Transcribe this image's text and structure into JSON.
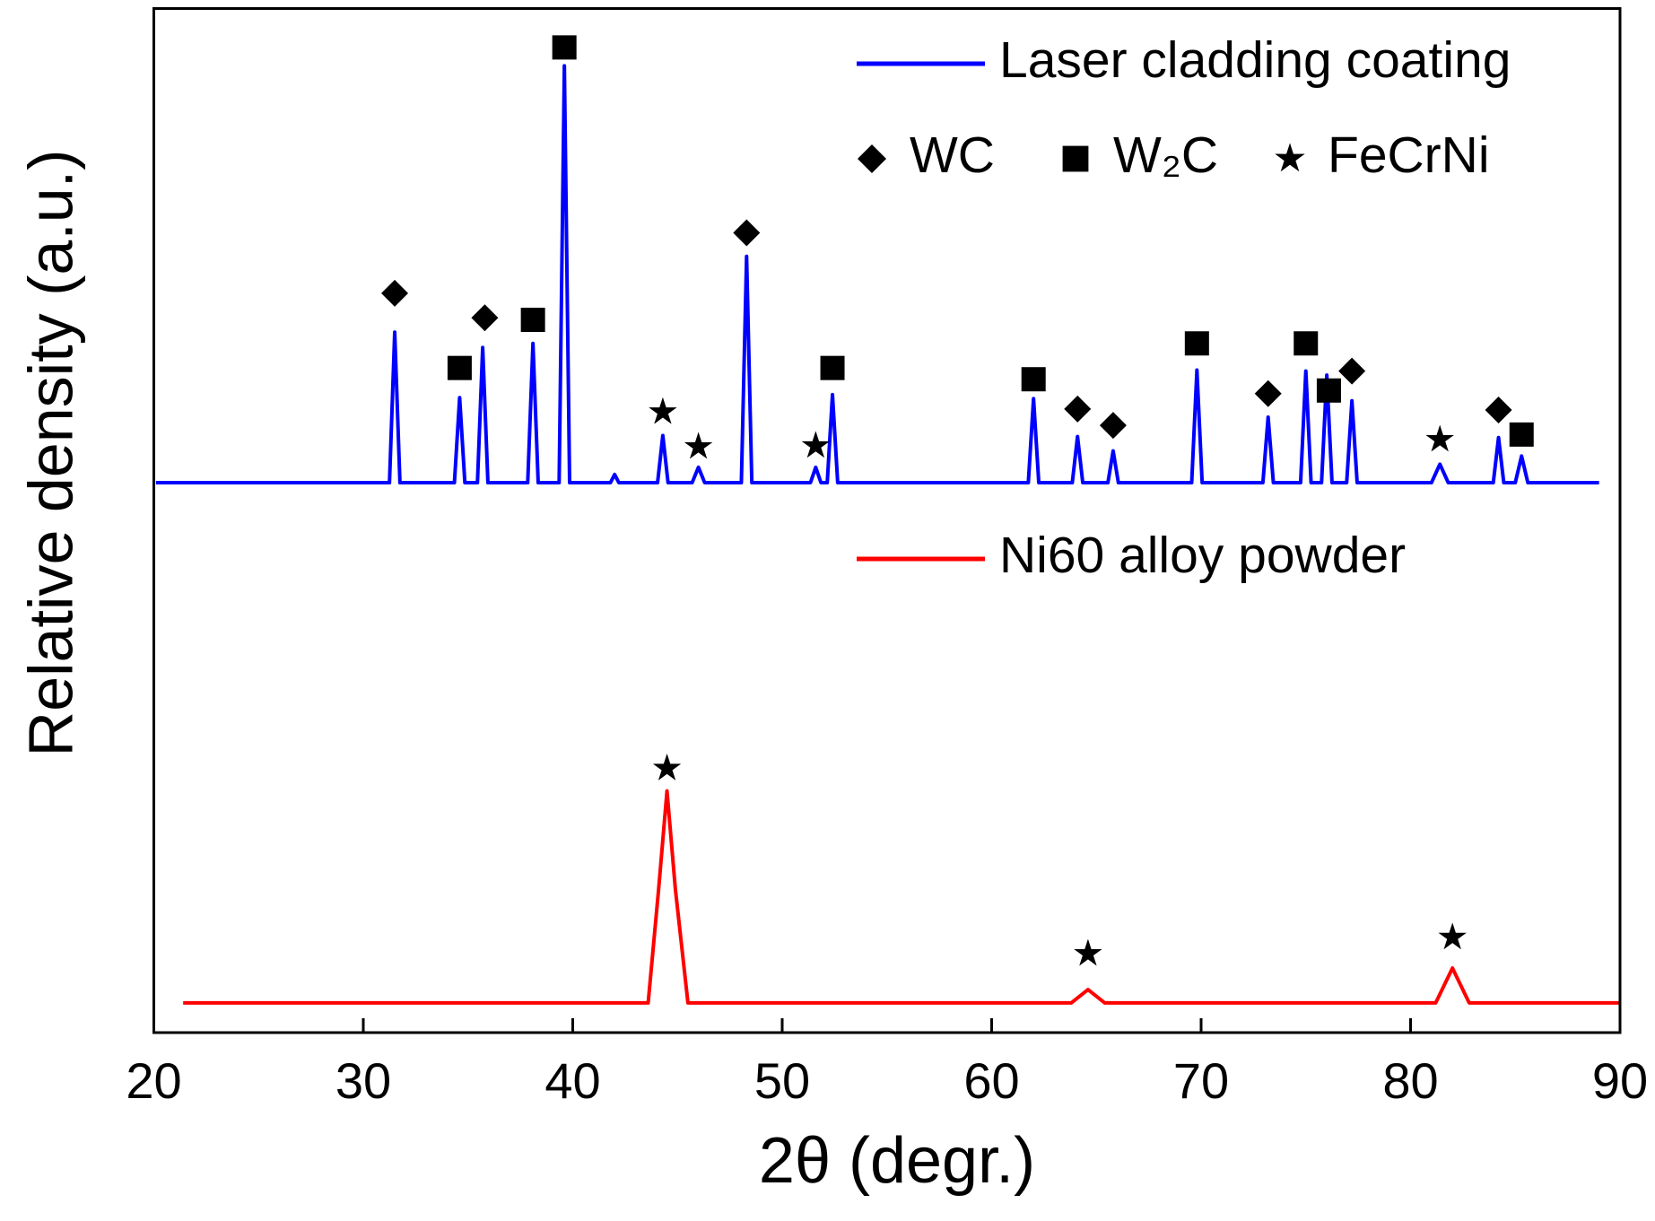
{
  "chart_data": {
    "type": "line",
    "xlabel": "2θ (degr.)",
    "ylabel": "Relative density (a.u.)",
    "xlim": [
      20,
      90
    ],
    "xticks": [
      20,
      30,
      40,
      50,
      60,
      70,
      80,
      90
    ],
    "ylim": [
      0,
      100
    ],
    "series": [
      {
        "name": "Laser cladding coating",
        "color": "#0000ff",
        "x": [
          20.1,
          31.25,
          31.5,
          31.75,
          34.35,
          34.6,
          34.85,
          35.45,
          35.7,
          35.95,
          37.85,
          38.1,
          38.35,
          39.35,
          39.6,
          39.85,
          41.8,
          42.0,
          42.2,
          44.05,
          44.3,
          44.55,
          45.7,
          46.0,
          46.3,
          48.05,
          48.3,
          48.55,
          51.35,
          51.6,
          51.85,
          52.15,
          52.4,
          52.65,
          61.75,
          62.0,
          62.25,
          63.85,
          64.1,
          64.35,
          65.55,
          65.8,
          66.05,
          69.55,
          69.8,
          70.05,
          72.95,
          73.2,
          73.45,
          74.75,
          75.0,
          75.25,
          75.75,
          76.0,
          76.25,
          76.95,
          77.2,
          77.45,
          81.0,
          81.4,
          81.8,
          83.95,
          84.2,
          84.45,
          85.0,
          85.3,
          85.6,
          89.0
        ],
        "values": [
          53.7,
          53.7,
          68.4,
          53.7,
          53.7,
          62.0,
          53.7,
          53.7,
          66.9,
          53.7,
          53.7,
          67.3,
          53.7,
          53.7,
          94.4,
          53.7,
          53.7,
          54.5,
          53.7,
          53.7,
          58.3,
          53.7,
          53.7,
          55.2,
          53.7,
          53.7,
          75.8,
          53.7,
          53.7,
          55.2,
          53.7,
          53.7,
          62.3,
          53.7,
          53.7,
          61.9,
          53.7,
          53.7,
          58.2,
          53.7,
          53.7,
          56.8,
          53.7,
          53.7,
          64.7,
          53.7,
          53.7,
          60.1,
          53.7,
          53.7,
          64.6,
          53.7,
          53.7,
          64.2,
          53.7,
          53.7,
          61.7,
          53.7,
          53.7,
          55.5,
          53.7,
          53.7,
          58.1,
          53.7,
          53.7,
          56.3,
          53.7,
          53.7
        ]
      },
      {
        "name": "Ni60 alloy powder",
        "color": "#ff0000",
        "x": [
          21.4,
          43.6,
          44.1,
          44.5,
          44.9,
          45.5,
          63.8,
          64.6,
          65.4,
          81.2,
          82.0,
          82.8,
          90
        ],
        "values": [
          2.9,
          2.9,
          14,
          23.6,
          14,
          2.9,
          2.9,
          4.2,
          2.9,
          2.9,
          6.3,
          2.9,
          2.9
        ]
      }
    ],
    "phases": [
      {
        "name": "WC",
        "symbol": "diamond",
        "x": [
          31.5,
          35.8,
          48.3,
          64.1,
          65.8,
          73.2,
          77.2,
          84.2
        ],
        "y": [
          72.2,
          69.8,
          78.1,
          60.9,
          59.3,
          62.4,
          64.6,
          60.8
        ]
      },
      {
        "name": "W₂C",
        "symbol": "square",
        "x": [
          34.6,
          38.1,
          39.6,
          52.4,
          62.0,
          69.8,
          75.0,
          76.1,
          85.3
        ],
        "y": [
          64.9,
          69.6,
          96.2,
          64.9,
          63.8,
          67.3,
          67.3,
          62.7,
          58.4
        ]
      },
      {
        "name": "FeCrNi",
        "symbol": "star",
        "x": [
          44.3,
          46.0,
          51.6,
          81.4,
          44.5,
          64.6,
          82.0
        ],
        "y": [
          60.6,
          57.2,
          57.3,
          57.9,
          25.8,
          7.7,
          9.3
        ]
      }
    ]
  }
}
